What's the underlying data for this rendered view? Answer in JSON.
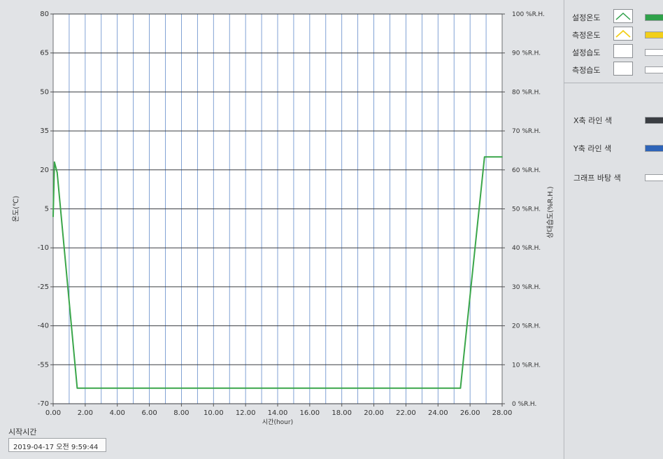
{
  "chart_data": {
    "type": "line",
    "xlabel": "시간(hour)",
    "ylabel_left": "온도(℃)",
    "ylabel_right": "상대습도(%R.H.)",
    "xlim": [
      0,
      28
    ],
    "ylim_left": [
      -70,
      80
    ],
    "ylim_right": [
      0,
      100
    ],
    "x_ticks": [
      "0.00",
      "2.00",
      "4.00",
      "6.00",
      "8.00",
      "10.00",
      "12.00",
      "14.00",
      "16.00",
      "18.00",
      "20.00",
      "22.00",
      "24.00",
      "26.00",
      "28.00"
    ],
    "y_ticks_left": [
      "80",
      "65",
      "50",
      "35",
      "20",
      "5",
      "-10",
      "-25",
      "-40",
      "-55",
      "-70"
    ],
    "y_ticks_right": [
      "100 %R.H.",
      "90 %R.H.",
      "80 %R.H.",
      "70 %R.H.",
      "60 %R.H.",
      "50 %R.H.",
      "40 %R.H.",
      "30 %R.H.",
      "20 %R.H.",
      "10 %R.H.",
      "0 %R.H."
    ],
    "grid": true,
    "legend_position": "right",
    "series": [
      {
        "name": "설정온도",
        "color": "#3aa64a",
        "x": [
          0,
          0.08,
          0.25,
          1.5,
          25.4,
          26.9,
          28
        ],
        "y": [
          2,
          23,
          19,
          -64,
          -64,
          25,
          25
        ]
      }
    ]
  },
  "legend": {
    "items": [
      {
        "label": "설정온도",
        "icon": "line-green-icon",
        "color": "#2fa14a"
      },
      {
        "label": "측정온도",
        "icon": "line-yellow-icon",
        "color": "#f2cf1a"
      },
      {
        "label": "설정습도",
        "icon": "empty-icon",
        "color": "#ffffff"
      },
      {
        "label": "측정습도",
        "icon": "empty-icon",
        "color": "#ffffff"
      }
    ]
  },
  "colors": {
    "items": [
      {
        "label": "X축 라인 색",
        "color": "#3a3d42"
      },
      {
        "label": "Y축 라인 색",
        "color": "#2e64b8"
      },
      {
        "label": "그래프 바탕 색",
        "color": "#ffffff"
      }
    ]
  },
  "start": {
    "label": "시작시간",
    "value": "2019-04-17 오전 9:59:44"
  }
}
